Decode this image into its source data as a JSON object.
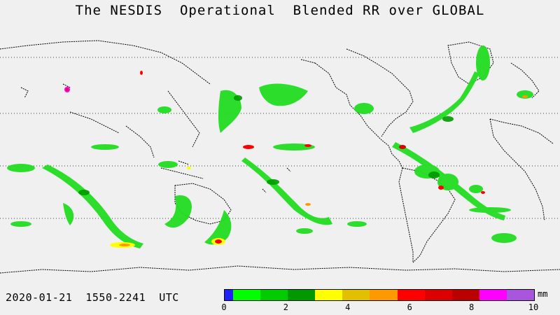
{
  "title": "The NESDIS  Operational  Blended RR over GLOBAL",
  "timestamp": "2020-01-21  1550-2241  UTC",
  "legend": {
    "unit": "mm",
    "colors": [
      "#2020ff",
      "#00ff00",
      "#00cc00",
      "#009900",
      "#ffff00",
      "#e0c000",
      "#ff9900",
      "#ff0000",
      "#dd0000",
      "#bb0000",
      "#ff00ff",
      "#aa55dd"
    ],
    "ticks": [
      {
        "label": "0",
        "value": 0
      },
      {
        "label": "2",
        "value": 2
      },
      {
        "label": "4",
        "value": 4
      },
      {
        "label": "6",
        "value": 6
      },
      {
        "label": "8",
        "value": 8
      },
      {
        "label": "10",
        "value": 10
      }
    ],
    "range": [
      0,
      10
    ]
  },
  "map": {
    "background_color": "#f0f0f0",
    "coastline_color": "#000000",
    "gridline_style": "dotted"
  }
}
